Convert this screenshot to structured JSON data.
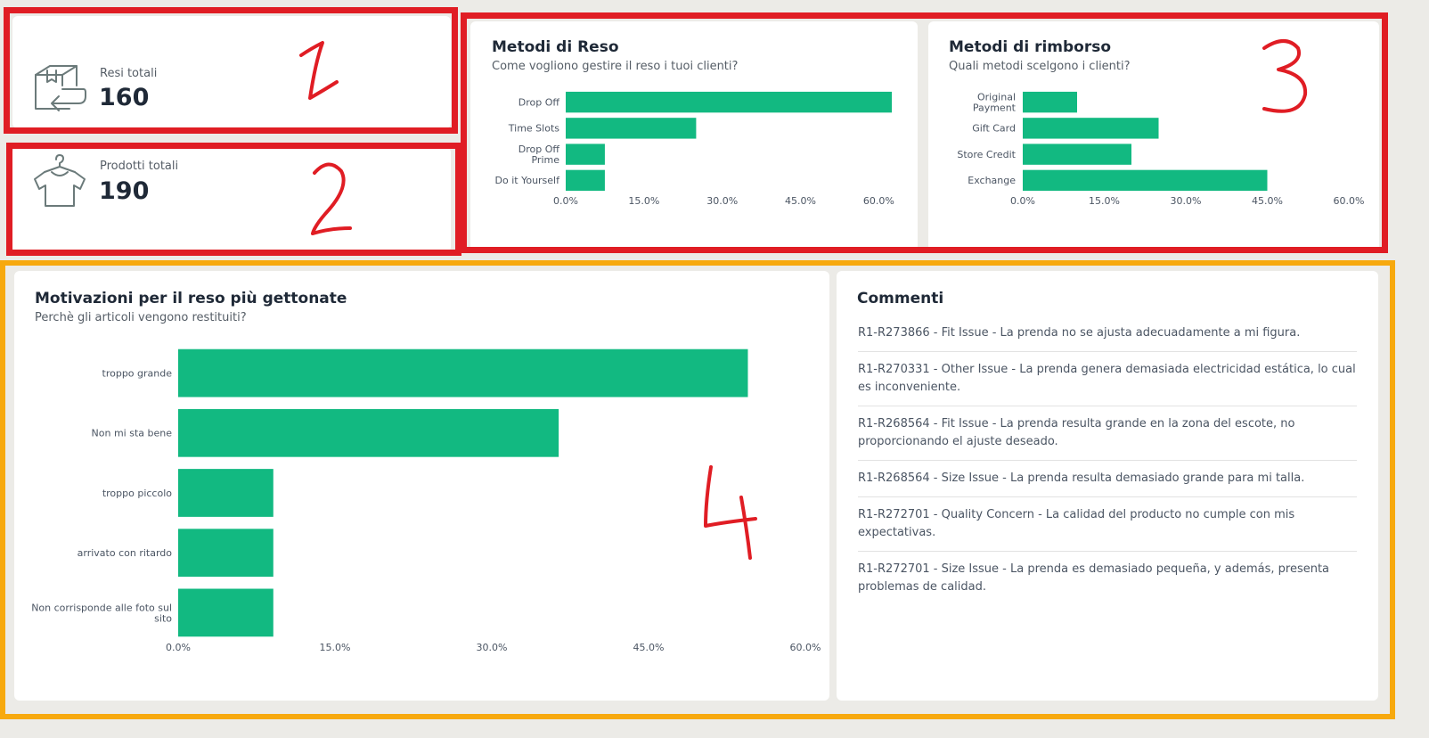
{
  "kpis": {
    "returns": {
      "label": "Resi totali",
      "value": "160",
      "icon": "return-box-icon"
    },
    "products": {
      "label": "Prodotti totali",
      "value": "190",
      "icon": "shirt-hanger-icon"
    }
  },
  "charts": {
    "return_methods": {
      "title": "Metodi di Reso",
      "subtitle": "Come vogliono gestire il reso i tuoi clienti?"
    },
    "refund_methods": {
      "title": "Metodi di rimborso",
      "subtitle": "Quali metodi scelgono i clienti?"
    },
    "return_reasons": {
      "title": "Motivazioni per il reso più gettonate",
      "subtitle": "Perchè gli articoli vengono restituiti?"
    }
  },
  "chart_data": [
    {
      "type": "bar",
      "orientation": "horizontal",
      "categories": [
        [
          "Drop Off"
        ],
        [
          "Time Slots"
        ],
        [
          "Drop Off",
          "Prime"
        ],
        [
          "Do it Yourself"
        ]
      ],
      "values": [
        62.5,
        25.0,
        7.5,
        7.5
      ],
      "xlim": [
        0,
        62.5
      ],
      "xticks": [
        "0.0%",
        "15.0%",
        "30.0%",
        "45.0%",
        "60.0%"
      ],
      "color": "#12b981"
    },
    {
      "type": "bar",
      "orientation": "horizontal",
      "categories": [
        [
          "Original",
          "Payment"
        ],
        [
          "Gift Card"
        ],
        [
          "Store Credit"
        ],
        [
          "Exchange"
        ]
      ],
      "values": [
        10.0,
        25.0,
        20.0,
        45.0
      ],
      "xlim": [
        0,
        60
      ],
      "xticks": [
        "0.0%",
        "15.0%",
        "30.0%",
        "45.0%",
        "60.0%"
      ],
      "color": "#12b981"
    },
    {
      "type": "bar",
      "orientation": "horizontal",
      "categories": [
        [
          "troppo grande"
        ],
        [
          "Non mi sta bene"
        ],
        [
          "troppo piccolo"
        ],
        [
          "arrivato con ritardo"
        ],
        [
          "Non corrisponde alle foto sul",
          "sito"
        ]
      ],
      "values": [
        54.5,
        36.4,
        9.1,
        9.1,
        9.1
      ],
      "xlim": [
        0,
        60
      ],
      "xticks": [
        "0.0%",
        "15.0%",
        "30.0%",
        "45.0%",
        "60.0%"
      ],
      "color": "#12b981"
    }
  ],
  "comments": {
    "title": "Commenti",
    "items": [
      "R1-R273866 - Fit Issue - La prenda no se ajusta adecuadamente a mi figura.",
      "R1-R270331 - Other Issue - La prenda genera demasiada electricidad estática, lo cual es inconveniente.",
      "R1-R268564 - Fit Issue - La prenda resulta grande en la zona del escote, no proporcionando el ajuste deseado.",
      "R1-R268564 - Size Issue - La prenda resulta demasiado grande para mi talla.",
      "R1-R272701 - Quality Concern - La calidad del producto no cumple con mis expectativas.",
      "R1-R272701 - Size Issue - La prenda es demasiado pequeña, y además, presenta problemas de calidad."
    ]
  },
  "annotations": {
    "one": "1",
    "two": "2",
    "three": "3",
    "four": "4"
  },
  "colors": {
    "bar": "#12b981",
    "annotation_red": "#e01d24",
    "annotation_orange": "#f7a90e",
    "background": "#ecebe7"
  }
}
